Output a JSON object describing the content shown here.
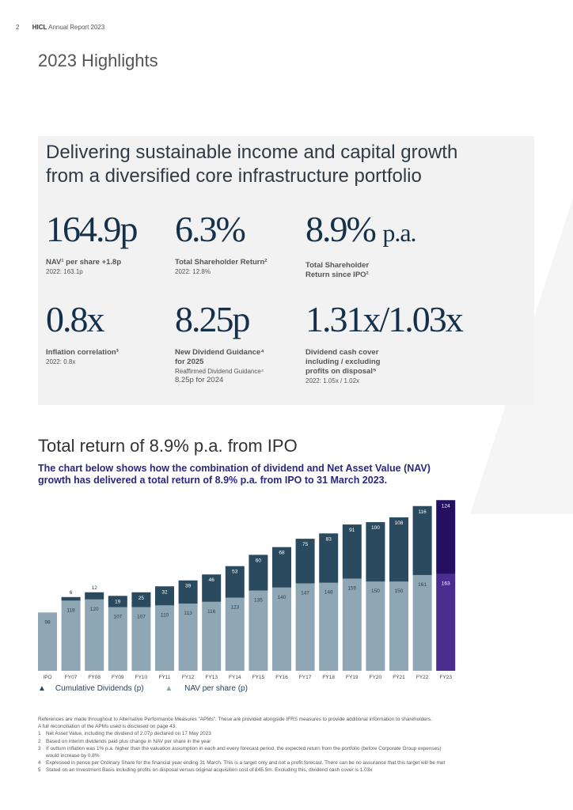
{
  "header": {
    "page_number": "2",
    "brand": "HICL",
    "report": "Annual Report 2023"
  },
  "title": "2023 Highlights",
  "panel": {
    "intro_line1": "Delivering sustainable income and capital growth",
    "intro_line2": "from a diversified core infrastructure portfolio",
    "metrics": [
      {
        "value": "164.9p",
        "label": "NAV¹ per share +1.8p",
        "sub": "2022: 163.1p"
      },
      {
        "value": "6.3%",
        "label": "Total Shareholder Return²",
        "sub": "2022: 12.8%"
      },
      {
        "value": "8.9%",
        "value_suffix": "p.a.",
        "label_line1": "Total Shareholder",
        "label_line2": "Return since IPO²"
      },
      {
        "value": "0.8x",
        "label": "Inflation correlation³",
        "sub": "2022: 0.8x"
      },
      {
        "value": "8.25p",
        "label_line1": "New Dividend Guidance⁴",
        "label_line2": "for 2025",
        "sub": "Reaffirmed Dividend Guidance⁴",
        "sub2": "8.25p for 2024"
      },
      {
        "value": "1.31x/1.03x",
        "label_line1": "Dividend cash cover",
        "label_line2": "including / excluding",
        "label_line3": "profits on disposal⁵",
        "sub": "2022: 1.05x / 1.02x"
      }
    ]
  },
  "section2": {
    "title": "Total return of 8.9% p.a. from IPO",
    "desc_line1": "The chart below shows how the combination of dividend and Net Asset Value (NAV)",
    "desc_line2": "growth has delivered a total return of 8.9% p.a. from IPO to 31 March 2023."
  },
  "chart_data": {
    "type": "bar",
    "stacked": true,
    "categories": [
      "IPO",
      "FY07",
      "FY08",
      "FY09",
      "FY10",
      "FY11",
      "FY12",
      "FY13",
      "FY14",
      "FY15",
      "FY16",
      "FY17",
      "FY18",
      "FY19",
      "FY20",
      "FY21",
      "FY22",
      "FY23"
    ],
    "series": [
      {
        "name": "NAV per share (p)",
        "values": [
          98,
          118,
          120,
          107,
          107,
          110,
          113,
          116,
          123,
          135,
          140,
          147,
          148,
          155,
          150,
          150,
          161,
          163
        ]
      },
      {
        "name": "Cumulative Dividends (p)",
        "values": [
          0,
          6,
          12,
          19,
          25,
          32,
          39,
          46,
          53,
          60,
          68,
          75,
          83,
          91,
          100,
          108,
          116,
          124
        ]
      }
    ],
    "ylim": [
      0,
      290
    ],
    "legend": [
      "Cumulative Dividends (p)",
      "NAV per share (p)"
    ],
    "legend_position": "bottom-left",
    "colors": {
      "nav": "#8fa6b4",
      "div": "#2a4b5f",
      "nav_highlight": "#4a2d8f",
      "div_highlight": "#241060"
    }
  },
  "notes": [
    {
      "num": "",
      "text": "References are made throughout to Alternative Performance Measures \"APMs\". These are provided alongside IFRS measures to provide additional information to shareholders."
    },
    {
      "num": "",
      "text": "A full reconciliation of the APMs used is disclosed on page 43."
    },
    {
      "num": "1",
      "text": "Net Asset Value, including the dividend of 2.07p declared on 17 May 2023"
    },
    {
      "num": "2",
      "text": "Based on interim dividends paid plus change in NAV per share in the year"
    },
    {
      "num": "3",
      "text": "If outturn inflation was 1% p.a. higher than the valuation assumption in each and every forecast period, the expected return from the portfolio (before Corporate Group expenses)"
    },
    {
      "num": "",
      "text": "would increase by 0.8%"
    },
    {
      "num": "4",
      "text": "Expressed in pence per Ordinary Share for the financial year ending 31 March. This is a target only and not a profit forecast. There can be no assurance that this target will be met"
    },
    {
      "num": "5",
      "text": "Stated on an Investment Basis including profits on disposal versus original acquisition cost of £45.5m. Excluding this, dividend cash cover is 1.03x"
    }
  ]
}
